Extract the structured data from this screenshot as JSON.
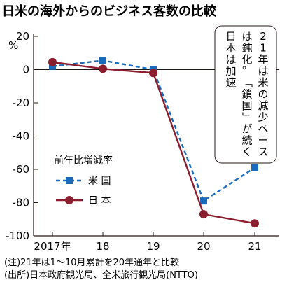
{
  "chart_data": {
    "type": "line",
    "title": "日米の海外からのビジネス客数の比較",
    "y_unit": "%",
    "categories": [
      "2017年",
      "18",
      "19",
      "20",
      "21"
    ],
    "ylim": [
      -100,
      20
    ],
    "yticks": [
      20,
      0,
      -20,
      -40,
      -60,
      -80,
      -100
    ],
    "ytick_labels": [
      "20",
      "0",
      "-20",
      "-40",
      "-60",
      "-80",
      "-100"
    ],
    "grid": false,
    "legend_title": "前年比増減率",
    "legend_placement": "center-left",
    "series": [
      {
        "name": "米 国",
        "color": "#1b6bbd",
        "dashed": true,
        "marker": "square",
        "values": [
          2,
          5.5,
          0,
          -79,
          -59
        ]
      },
      {
        "name": "日 本",
        "color": "#8c1d2e",
        "dashed": false,
        "marker": "circle",
        "values": [
          4.5,
          0.5,
          -2,
          -87,
          -92.5
        ]
      }
    ],
    "annotation": [
      "21年は米の減少ペース",
      "は鈍化。「鎖国」が続く",
      "日本は加速"
    ],
    "notes": [
      "(注)21年は1～10月累計を20年通年と比較",
      "(出所)日本政府観光局、全米旅行観光局(NTTO)"
    ]
  }
}
